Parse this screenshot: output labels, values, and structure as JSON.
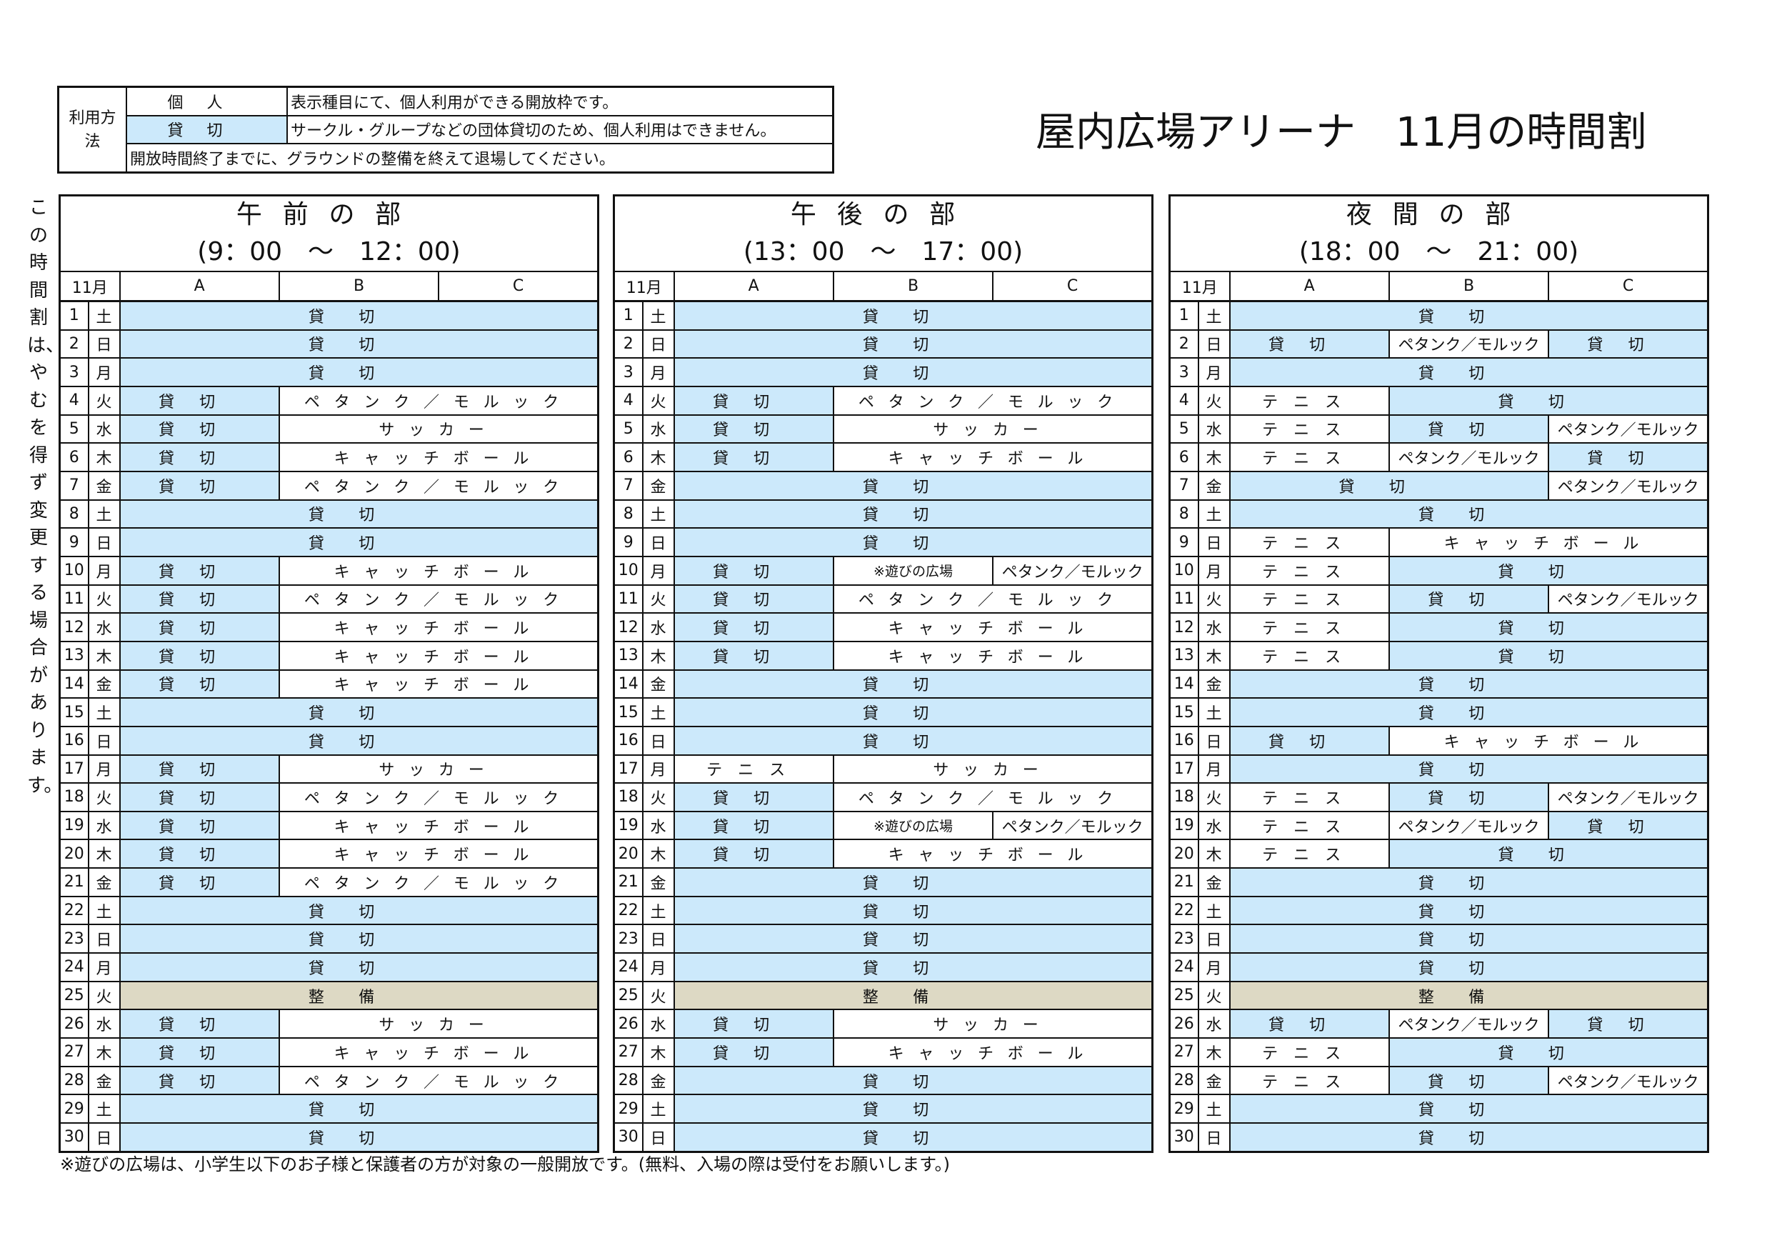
{
  "legend": {
    "label": "利用方法",
    "rows": [
      {
        "kind": "個人",
        "desc": "表示種目にて、個人利用ができる開放枠です。"
      },
      {
        "kind": "貸切",
        "desc": "サークル・グループなどの団体貸切のため、個人利用はできません。"
      }
    ],
    "note": "開放時間終了までに、グラウンドの整備を終えて退場してください。"
  },
  "title": "屋内広場アリーナ　11月の時間割",
  "side_note": "この時間割は、やむを得ず変更する場合があります。",
  "footer_note": "※遊びの広場は、小学生以下のお子様と保護者の方が対象の一般開放です。(無料、入場の際は受付をお願いします。)",
  "colors": {
    "rental": "#cce9fb",
    "maintenance": "#ddd9c4",
    "open": "#ffffff"
  },
  "month_label": "11月",
  "columns": [
    "A",
    "B",
    "C"
  ],
  "weekdays": [
    "土",
    "日",
    "月",
    "火",
    "水",
    "木",
    "金",
    "土",
    "日",
    "月",
    "火",
    "水",
    "木",
    "金",
    "土",
    "日",
    "月",
    "火",
    "水",
    "木",
    "金",
    "土",
    "日",
    "月",
    "火",
    "水",
    "木",
    "金",
    "土",
    "日"
  ],
  "sections": [
    {
      "name": "午前の部",
      "time": "(9：00　～　12：00)",
      "rows": [
        [
          [
            "貸切",
            3
          ]
        ],
        [
          [
            "貸切",
            3
          ]
        ],
        [
          [
            "貸切",
            3
          ]
        ],
        [
          [
            "貸切",
            1
          ],
          [
            "ペタンク／モルック",
            2
          ]
        ],
        [
          [
            "貸切",
            1
          ],
          [
            "サッカー",
            2
          ]
        ],
        [
          [
            "貸切",
            1
          ],
          [
            "キャッチボール",
            2
          ]
        ],
        [
          [
            "貸切",
            1
          ],
          [
            "ペタンク／モルック",
            2
          ]
        ],
        [
          [
            "貸切",
            3
          ]
        ],
        [
          [
            "貸切",
            3
          ]
        ],
        [
          [
            "貸切",
            1
          ],
          [
            "キャッチボール",
            2
          ]
        ],
        [
          [
            "貸切",
            1
          ],
          [
            "ペタンク／モルック",
            2
          ]
        ],
        [
          [
            "貸切",
            1
          ],
          [
            "キャッチボール",
            2
          ]
        ],
        [
          [
            "貸切",
            1
          ],
          [
            "キャッチボール",
            2
          ]
        ],
        [
          [
            "貸切",
            1
          ],
          [
            "キャッチボール",
            2
          ]
        ],
        [
          [
            "貸切",
            3
          ]
        ],
        [
          [
            "貸切",
            3
          ]
        ],
        [
          [
            "貸切",
            1
          ],
          [
            "サッカー",
            2
          ]
        ],
        [
          [
            "貸切",
            1
          ],
          [
            "ペタンク／モルック",
            2
          ]
        ],
        [
          [
            "貸切",
            1
          ],
          [
            "キャッチボール",
            2
          ]
        ],
        [
          [
            "貸切",
            1
          ],
          [
            "キャッチボール",
            2
          ]
        ],
        [
          [
            "貸切",
            1
          ],
          [
            "ペタンク／モルック",
            2
          ]
        ],
        [
          [
            "貸切",
            3
          ]
        ],
        [
          [
            "貸切",
            3
          ]
        ],
        [
          [
            "貸切",
            3
          ]
        ],
        [
          [
            "整備",
            3
          ]
        ],
        [
          [
            "貸切",
            1
          ],
          [
            "サッカー",
            2
          ]
        ],
        [
          [
            "貸切",
            1
          ],
          [
            "キャッチボール",
            2
          ]
        ],
        [
          [
            "貸切",
            1
          ],
          [
            "ペタンク／モルック",
            2
          ]
        ],
        [
          [
            "貸切",
            3
          ]
        ],
        [
          [
            "貸切",
            3
          ]
        ]
      ]
    },
    {
      "name": "午後の部",
      "time": "(13：00　～　17：00)",
      "rows": [
        [
          [
            "貸切",
            3
          ]
        ],
        [
          [
            "貸切",
            3
          ]
        ],
        [
          [
            "貸切",
            3
          ]
        ],
        [
          [
            "貸切",
            1
          ],
          [
            "ペタンク／モルック",
            2
          ]
        ],
        [
          [
            "貸切",
            1
          ],
          [
            "サッカー",
            2
          ]
        ],
        [
          [
            "貸切",
            1
          ],
          [
            "キャッチボール",
            2
          ]
        ],
        [
          [
            "貸切",
            3
          ]
        ],
        [
          [
            "貸切",
            3
          ]
        ],
        [
          [
            "貸切",
            3
          ]
        ],
        [
          [
            "貸切",
            1
          ],
          [
            "※遊びの広場",
            1
          ],
          [
            "ペタンク／モルック",
            1
          ]
        ],
        [
          [
            "貸切",
            1
          ],
          [
            "ペタンク／モルック",
            2
          ]
        ],
        [
          [
            "貸切",
            1
          ],
          [
            "キャッチボール",
            2
          ]
        ],
        [
          [
            "貸切",
            1
          ],
          [
            "キャッチボール",
            2
          ]
        ],
        [
          [
            "貸切",
            3
          ]
        ],
        [
          [
            "貸切",
            3
          ]
        ],
        [
          [
            "貸切",
            3
          ]
        ],
        [
          [
            "テニス",
            1
          ],
          [
            "サッカー",
            2
          ]
        ],
        [
          [
            "貸切",
            1
          ],
          [
            "ペタンク／モルック",
            2
          ]
        ],
        [
          [
            "貸切",
            1
          ],
          [
            "※遊びの広場",
            1
          ],
          [
            "ペタンク／モルック",
            1
          ]
        ],
        [
          [
            "貸切",
            1
          ],
          [
            "キャッチボール",
            2
          ]
        ],
        [
          [
            "貸切",
            3
          ]
        ],
        [
          [
            "貸切",
            3
          ]
        ],
        [
          [
            "貸切",
            3
          ]
        ],
        [
          [
            "貸切",
            3
          ]
        ],
        [
          [
            "整備",
            3
          ]
        ],
        [
          [
            "貸切",
            1
          ],
          [
            "サッカー",
            2
          ]
        ],
        [
          [
            "貸切",
            1
          ],
          [
            "キャッチボール",
            2
          ]
        ],
        [
          [
            "貸切",
            3
          ]
        ],
        [
          [
            "貸切",
            3
          ]
        ],
        [
          [
            "貸切",
            3
          ]
        ]
      ]
    },
    {
      "name": "夜間の部",
      "time": "(18：00　～　21：00)",
      "rows": [
        [
          [
            "貸切",
            3
          ]
        ],
        [
          [
            "貸切",
            1
          ],
          [
            "ペタンク／モルック",
            1
          ],
          [
            "貸切",
            1
          ]
        ],
        [
          [
            "貸切",
            3
          ]
        ],
        [
          [
            "テニス",
            1
          ],
          [
            "貸切",
            2
          ]
        ],
        [
          [
            "テニス",
            1
          ],
          [
            "貸切",
            1
          ],
          [
            "ペタンク／モルック",
            1
          ]
        ],
        [
          [
            "テニス",
            1
          ],
          [
            "ペタンク／モルック",
            1
          ],
          [
            "貸切",
            1
          ]
        ],
        [
          [
            "貸切",
            2
          ],
          [
            "ペタンク／モルック",
            1
          ]
        ],
        [
          [
            "貸切",
            3
          ]
        ],
        [
          [
            "テニス",
            1
          ],
          [
            "キャッチボール",
            2
          ]
        ],
        [
          [
            "テニス",
            1
          ],
          [
            "貸切",
            2
          ]
        ],
        [
          [
            "テニス",
            1
          ],
          [
            "貸切",
            1
          ],
          [
            "ペタンク／モルック",
            1
          ]
        ],
        [
          [
            "テニス",
            1
          ],
          [
            "貸切",
            2
          ]
        ],
        [
          [
            "テニス",
            1
          ],
          [
            "貸切",
            2
          ]
        ],
        [
          [
            "貸切",
            3
          ]
        ],
        [
          [
            "貸切",
            3
          ]
        ],
        [
          [
            "貸切",
            1
          ],
          [
            "キャッチボール",
            2
          ]
        ],
        [
          [
            "貸切",
            3
          ]
        ],
        [
          [
            "テニス",
            1
          ],
          [
            "貸切",
            1
          ],
          [
            "ペタンク／モルック",
            1
          ]
        ],
        [
          [
            "テニス",
            1
          ],
          [
            "ペタンク／モルック",
            1
          ],
          [
            "貸切",
            1
          ]
        ],
        [
          [
            "テニス",
            1
          ],
          [
            "貸切",
            2
          ]
        ],
        [
          [
            "貸切",
            3
          ]
        ],
        [
          [
            "貸切",
            3
          ]
        ],
        [
          [
            "貸切",
            3
          ]
        ],
        [
          [
            "貸切",
            3
          ]
        ],
        [
          [
            "整備",
            3
          ]
        ],
        [
          [
            "貸切",
            1
          ],
          [
            "ペタンク／モルック",
            1
          ],
          [
            "貸切",
            1
          ]
        ],
        [
          [
            "テニス",
            1
          ],
          [
            "貸切",
            2
          ]
        ],
        [
          [
            "テニス",
            1
          ],
          [
            "貸切",
            1
          ],
          [
            "ペタンク／モルック",
            1
          ]
        ],
        [
          [
            "貸切",
            3
          ]
        ],
        [
          [
            "貸切",
            3
          ]
        ]
      ]
    }
  ]
}
